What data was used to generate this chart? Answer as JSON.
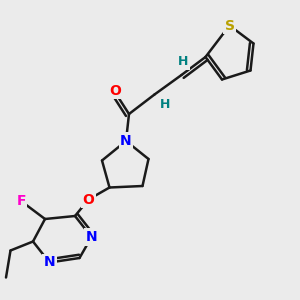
{
  "bg_color": "#ebebeb",
  "bond_color": "#1a1a1a",
  "bond_width": 1.8,
  "atom_colors": {
    "S": "#b8a000",
    "O": "#ff0000",
    "N": "#0000ff",
    "F": "#ff00cc",
    "H": "#008080",
    "C": "#1a1a1a"
  },
  "figsize": [
    3.0,
    3.0
  ],
  "dpi": 100
}
